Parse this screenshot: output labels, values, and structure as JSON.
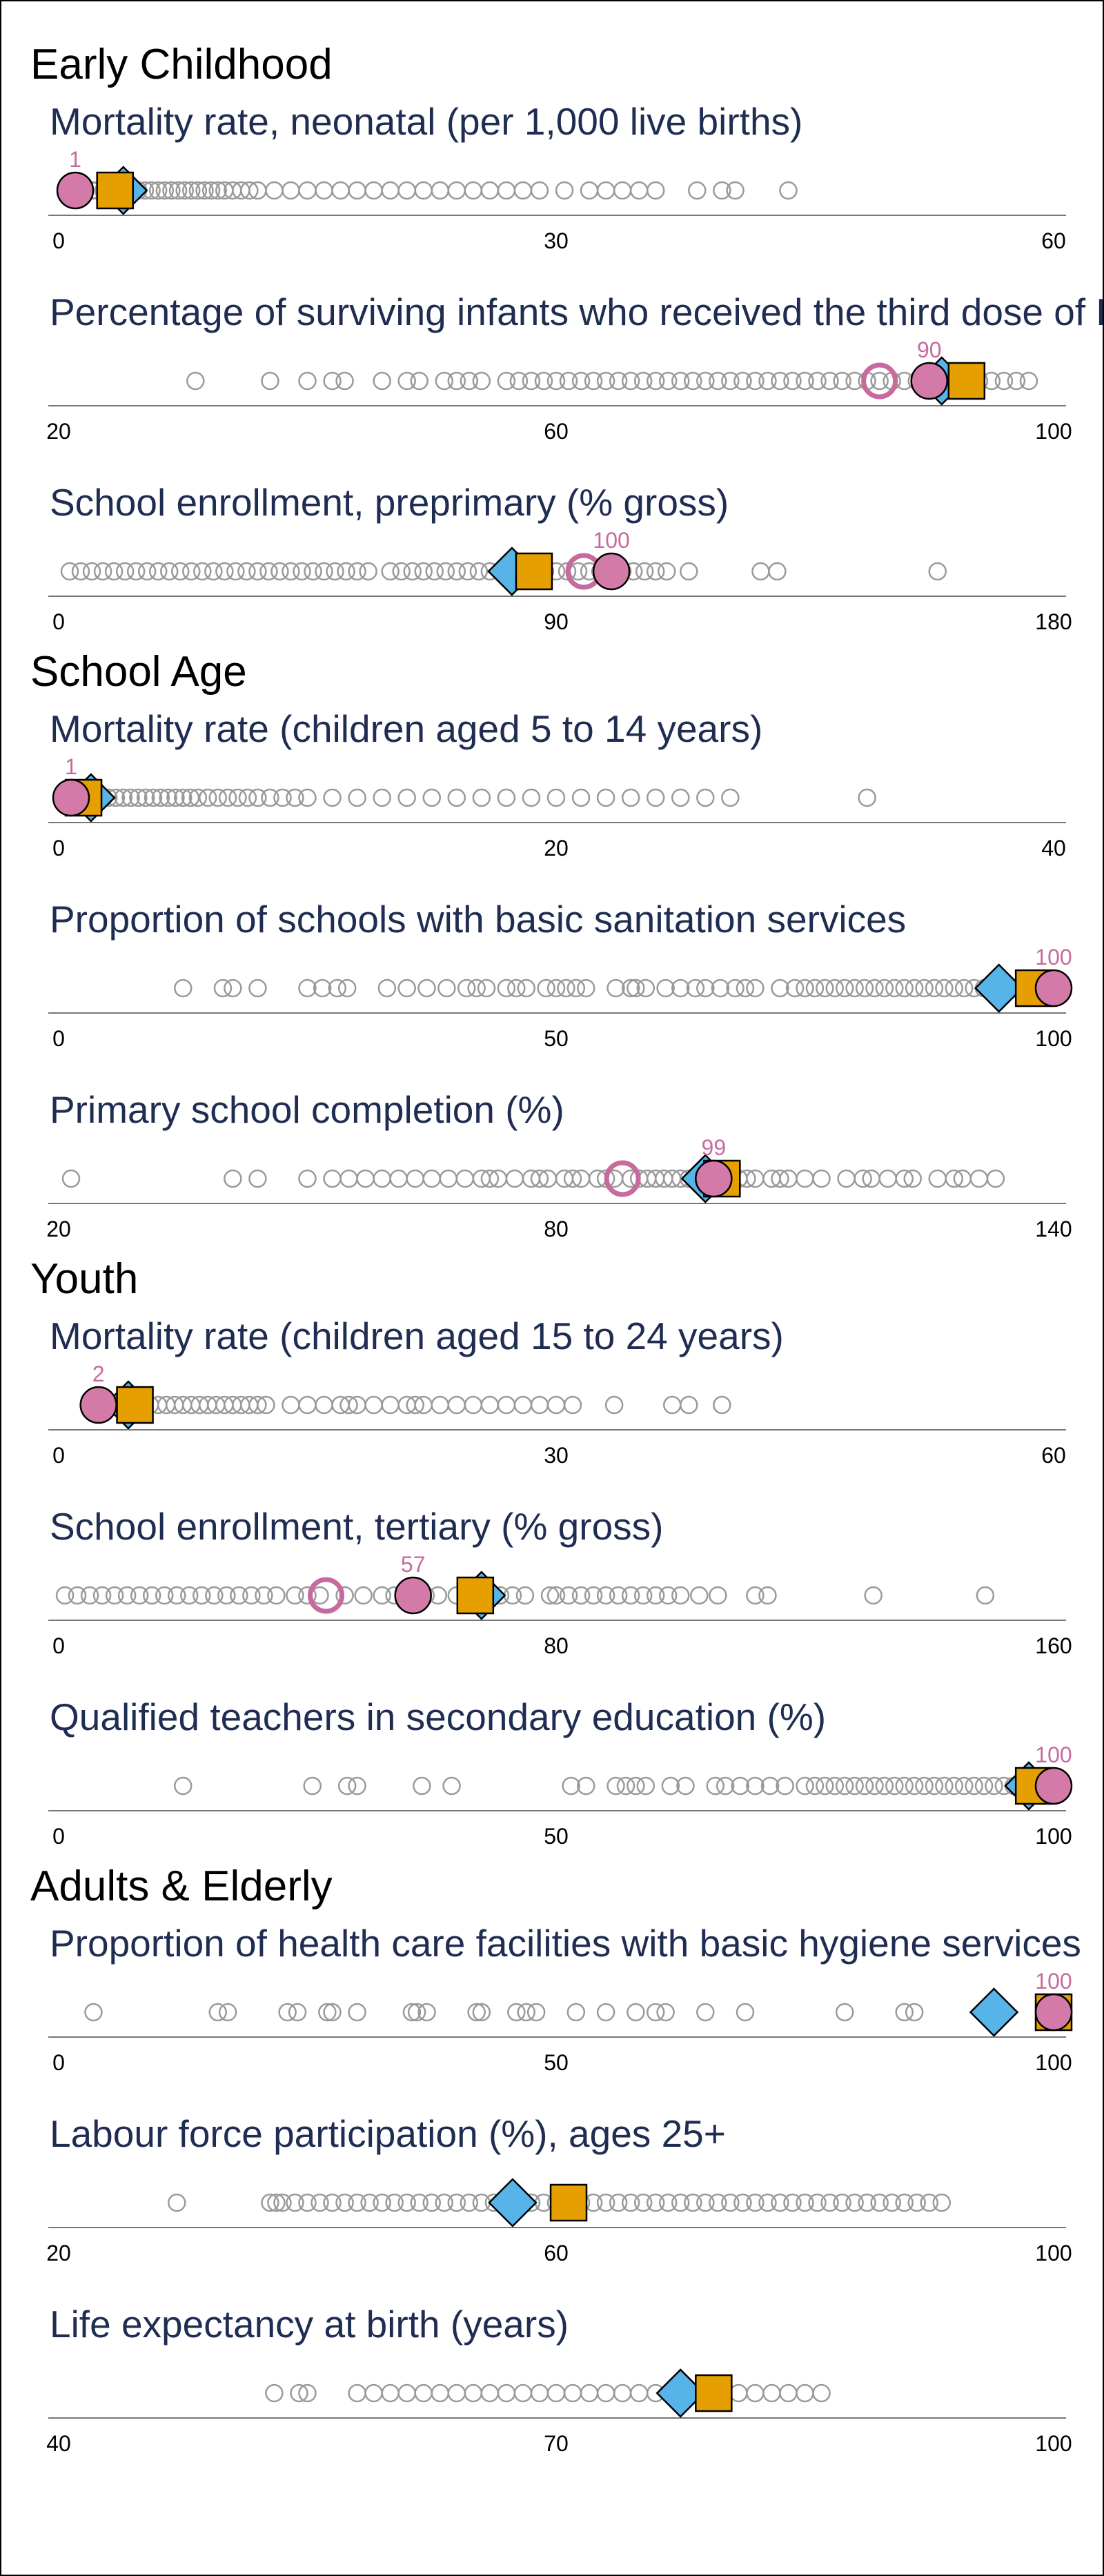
{
  "colors": {
    "section_title": "#000000",
    "panel_title": "#1f2d52",
    "value_label": "#c76b9e",
    "highlight_fill": "#d47aa8",
    "highlight_ring": "#c76b9e",
    "square_fill": "#e69f00",
    "diamond_fill": "#56b4e9",
    "other_country": "#9a9a9a",
    "axis": "#777777"
  },
  "chart_data": [
    {
      "type": "scatter",
      "section": "Early Childhood",
      "title": "Mortality rate, neonatal (per 1,000 live births)",
      "xlim": [
        0,
        60
      ],
      "ticks": [
        0,
        30,
        60
      ],
      "highlight": {
        "value": 1,
        "label": "1"
      },
      "comparison_ring": null,
      "square": 3.4,
      "diamond": 3.9,
      "other_countries": [
        1.0,
        1.5,
        2.0,
        2.3,
        2.7,
        3.2,
        3.8,
        4.3,
        4.8,
        5.2,
        5.6,
        6.0,
        6.4,
        6.8,
        7.2,
        7.6,
        8.0,
        8.4,
        8.8,
        9.2,
        9.6,
        10.0,
        10.5,
        11.0,
        11.5,
        12.0,
        13.0,
        14.0,
        15.0,
        16.0,
        17.0,
        18.0,
        19.0,
        20.0,
        21.0,
        22.0,
        23.0,
        24.0,
        25.0,
        26.0,
        27.0,
        28.0,
        29.0,
        30.5,
        32.0,
        33.0,
        34.0,
        35.0,
        36.0,
        38.5,
        40.0,
        40.8,
        44.0
      ]
    },
    {
      "type": "scatter",
      "section": "",
      "title": "Percentage of surviving infants who received the third dose of DTP-containing vaccine",
      "xlim": [
        20,
        100
      ],
      "ticks": [
        20,
        60,
        100
      ],
      "highlight": {
        "value": 90,
        "label": "90"
      },
      "comparison_ring": 86,
      "square": 93,
      "diamond": 91,
      "other_countries": [
        31,
        37,
        40,
        42,
        43,
        46,
        48,
        49,
        51,
        52,
        53,
        54,
        56,
        57,
        58,
        59,
        60,
        61,
        62,
        63,
        64,
        65,
        66,
        67,
        68,
        69,
        70,
        71,
        72,
        73,
        74,
        75,
        76,
        77,
        78,
        79,
        80,
        81,
        82,
        83,
        84,
        85,
        86,
        87,
        88,
        89,
        91,
        92,
        94,
        95,
        96,
        97,
        98
      ]
    },
    {
      "type": "scatter",
      "section": "",
      "title": "School enrollment, preprimary (% gross)",
      "xlim": [
        0,
        180
      ],
      "ticks": [
        0,
        90,
        180
      ],
      "highlight": {
        "value": 100,
        "label": "100"
      },
      "comparison_ring": 95,
      "square": 86,
      "diamond": 82,
      "other_countries": [
        2,
        4,
        6,
        8,
        10,
        12,
        14,
        16,
        18,
        20,
        22,
        24,
        26,
        28,
        30,
        32,
        34,
        36,
        38,
        40,
        42,
        44,
        46,
        48,
        50,
        52,
        54,
        56,
        60,
        62,
        64,
        66,
        68,
        70,
        72,
        74,
        76,
        78,
        80,
        82,
        84,
        86,
        88,
        90,
        92,
        94,
        96,
        98,
        100,
        102,
        104,
        106,
        108,
        110,
        114,
        127,
        130,
        159
      ]
    },
    {
      "type": "scatter",
      "section": "School Age",
      "title": "Mortality rate (children aged 5 to 14 years)",
      "xlim": [
        0,
        40
      ],
      "ticks": [
        0,
        20,
        40
      ],
      "highlight": {
        "value": 0.5,
        "label": "1"
      },
      "comparison_ring": null,
      "square": 1.0,
      "diamond": 1.3,
      "other_countries": [
        0.4,
        0.6,
        0.8,
        1.0,
        1.2,
        1.4,
        1.6,
        1.8,
        2.0,
        2.3,
        2.6,
        2.9,
        3.2,
        3.5,
        3.8,
        4.1,
        4.4,
        4.7,
        5.0,
        5.3,
        5.6,
        6.0,
        6.4,
        6.8,
        7.2,
        7.6,
        8.0,
        8.5,
        9.0,
        9.5,
        10.0,
        11.0,
        12.0,
        13.0,
        14.0,
        15.0,
        16.0,
        17.0,
        18.0,
        19.0,
        20.0,
        21.0,
        22.0,
        23.0,
        24.0,
        25.0,
        26.0,
        27.0,
        32.5
      ]
    },
    {
      "type": "scatter",
      "section": "",
      "title": "Proportion of schools with basic sanitation services",
      "xlim": [
        0,
        100
      ],
      "ticks": [
        0,
        50,
        100
      ],
      "highlight": {
        "value": 100,
        "label": "100"
      },
      "comparison_ring": null,
      "square": 98,
      "diamond": 94.5,
      "other_countries": [
        12.5,
        16.5,
        17.5,
        20,
        25,
        26.5,
        28,
        29,
        33,
        35,
        37,
        39,
        41,
        42,
        43,
        45,
        46,
        47,
        49,
        50,
        51,
        52,
        53,
        56,
        57.5,
        58,
        59,
        61,
        62.5,
        64,
        65,
        66.5,
        68,
        69,
        70,
        72.5,
        74,
        75,
        76,
        77,
        78,
        79,
        80,
        81,
        82,
        83,
        84,
        85,
        86,
        87,
        88,
        89,
        90,
        91,
        92,
        93,
        94,
        95,
        96,
        97
      ]
    },
    {
      "type": "scatter",
      "section": "",
      "title": "Primary school completion (%)",
      "xlim": [
        20,
        140
      ],
      "ticks": [
        20,
        80,
        140
      ],
      "highlight": {
        "value": 99,
        "label": "99"
      },
      "comparison_ring": 88,
      "square": 100,
      "diamond": 98,
      "other_countries": [
        21.5,
        41,
        44,
        50,
        53,
        55,
        57,
        59,
        61,
        63,
        65,
        67,
        69,
        71,
        72,
        73,
        75,
        77,
        78,
        79,
        81,
        82,
        83,
        85,
        86,
        87,
        89,
        90,
        91,
        92,
        93,
        94,
        95,
        96,
        97,
        98,
        100,
        101,
        102,
        103,
        104,
        106,
        107,
        108,
        110,
        112,
        115,
        117,
        118,
        120,
        122,
        123,
        126,
        128,
        129,
        131,
        133
      ]
    },
    {
      "type": "scatter",
      "section": "Youth",
      "title": "Mortality rate (children aged 15 to 24 years)",
      "xlim": [
        0,
        60
      ],
      "ticks": [
        0,
        30,
        60
      ],
      "highlight": {
        "value": 2.4,
        "label": "2"
      },
      "comparison_ring": null,
      "square": 4.6,
      "diamond": 4.2,
      "other_countries": [
        2.5,
        3.0,
        3.5,
        4.0,
        4.5,
        5.0,
        5.5,
        6.0,
        6.5,
        7.0,
        7.5,
        8.0,
        8.5,
        9.0,
        9.5,
        10.0,
        10.5,
        11.0,
        11.5,
        12.0,
        12.5,
        14.0,
        15.0,
        16.0,
        17.0,
        17.5,
        18.0,
        19.0,
        20.0,
        21.0,
        21.5,
        22.0,
        23.0,
        24.0,
        25.0,
        26.0,
        27.0,
        28.0,
        29.0,
        30.0,
        31.0,
        33.5,
        37.0,
        38.0,
        40.0
      ]
    },
    {
      "type": "scatter",
      "section": "",
      "title": "School enrollment, tertiary (% gross)",
      "xlim": [
        0,
        160
      ],
      "ticks": [
        0,
        80,
        160
      ],
      "highlight": {
        "value": 57,
        "label": "57"
      },
      "comparison_ring": 43,
      "square": 67,
      "diamond": 68,
      "other_countries": [
        1,
        3,
        5,
        7,
        9,
        11,
        13,
        15,
        17,
        19,
        21,
        23,
        25,
        27,
        29,
        31,
        33,
        35,
        38,
        40,
        42,
        46,
        49,
        52,
        54,
        56,
        59,
        61,
        64,
        66,
        69,
        71,
        73,
        75,
        79,
        80,
        82,
        84,
        86,
        88,
        90,
        92,
        94,
        96,
        98,
        100,
        103,
        106,
        112,
        114,
        131,
        149
      ]
    },
    {
      "type": "scatter",
      "section": "",
      "title": "Qualified teachers in secondary education (%)",
      "xlim": [
        0,
        100
      ],
      "ticks": [
        0,
        50,
        100
      ],
      "highlight": {
        "value": 100,
        "label": "100"
      },
      "comparison_ring": null,
      "square": 98,
      "diamond": 97.5,
      "other_countries": [
        12.5,
        25.5,
        29,
        30,
        36.5,
        39.5,
        51.5,
        53,
        56,
        57,
        58,
        59,
        61.5,
        63,
        66,
        67,
        68.5,
        70,
        71.5,
        73,
        75,
        76,
        77,
        78,
        79,
        80,
        81,
        82,
        83,
        84,
        85,
        86,
        87,
        88,
        89,
        90,
        91,
        92,
        93,
        94,
        95,
        96
      ]
    },
    {
      "type": "scatter",
      "section": "Adults & Elderly",
      "title": "Proportion of health care facilities with basic hygiene services",
      "xlim": [
        0,
        100
      ],
      "ticks": [
        0,
        50,
        100
      ],
      "highlight": {
        "value": 100,
        "label": "100"
      },
      "comparison_ring": null,
      "square": 100,
      "diamond": 94,
      "other_countries": [
        3.5,
        16,
        17,
        23,
        24,
        27,
        27.5,
        30,
        35.5,
        36,
        37,
        42,
        42.5,
        46,
        47,
        48,
        52,
        55,
        58,
        60,
        61,
        65,
        69,
        79,
        85,
        86
      ]
    },
    {
      "type": "scatter",
      "section": "",
      "title": "Labour force participation (%), ages 25+",
      "xlim": [
        20,
        100
      ],
      "ticks": [
        20,
        60,
        100
      ],
      "highlight": null,
      "comparison_ring": null,
      "square": 61,
      "diamond": 56.5,
      "other_countries": [
        29.5,
        37,
        37.5,
        38,
        39,
        40,
        41,
        42,
        43,
        44,
        45,
        46,
        47,
        48,
        49,
        50,
        51,
        52,
        53,
        54,
        55,
        56,
        57,
        58,
        59,
        60,
        61,
        62,
        63,
        64,
        65,
        66,
        67,
        68,
        69,
        70,
        71,
        72,
        73,
        74,
        75,
        76,
        77,
        78,
        79,
        80,
        81,
        82,
        83,
        84,
        85,
        86,
        87,
        88,
        89,
        90,
        91
      ]
    },
    {
      "type": "scatter",
      "section": "",
      "title": "Life expectancy at birth (years)",
      "xlim": [
        40,
        100
      ],
      "ticks": [
        40,
        70,
        100
      ],
      "highlight": null,
      "comparison_ring": null,
      "square": 79.5,
      "diamond": 77.5,
      "other_countries": [
        53,
        54.5,
        55,
        58,
        59,
        60,
        61,
        62,
        63,
        64,
        65,
        66,
        67,
        68,
        69,
        70,
        71,
        72,
        73,
        74,
        75,
        76,
        77,
        78,
        79,
        80,
        81,
        82,
        83,
        84,
        85,
        86
      ]
    }
  ]
}
